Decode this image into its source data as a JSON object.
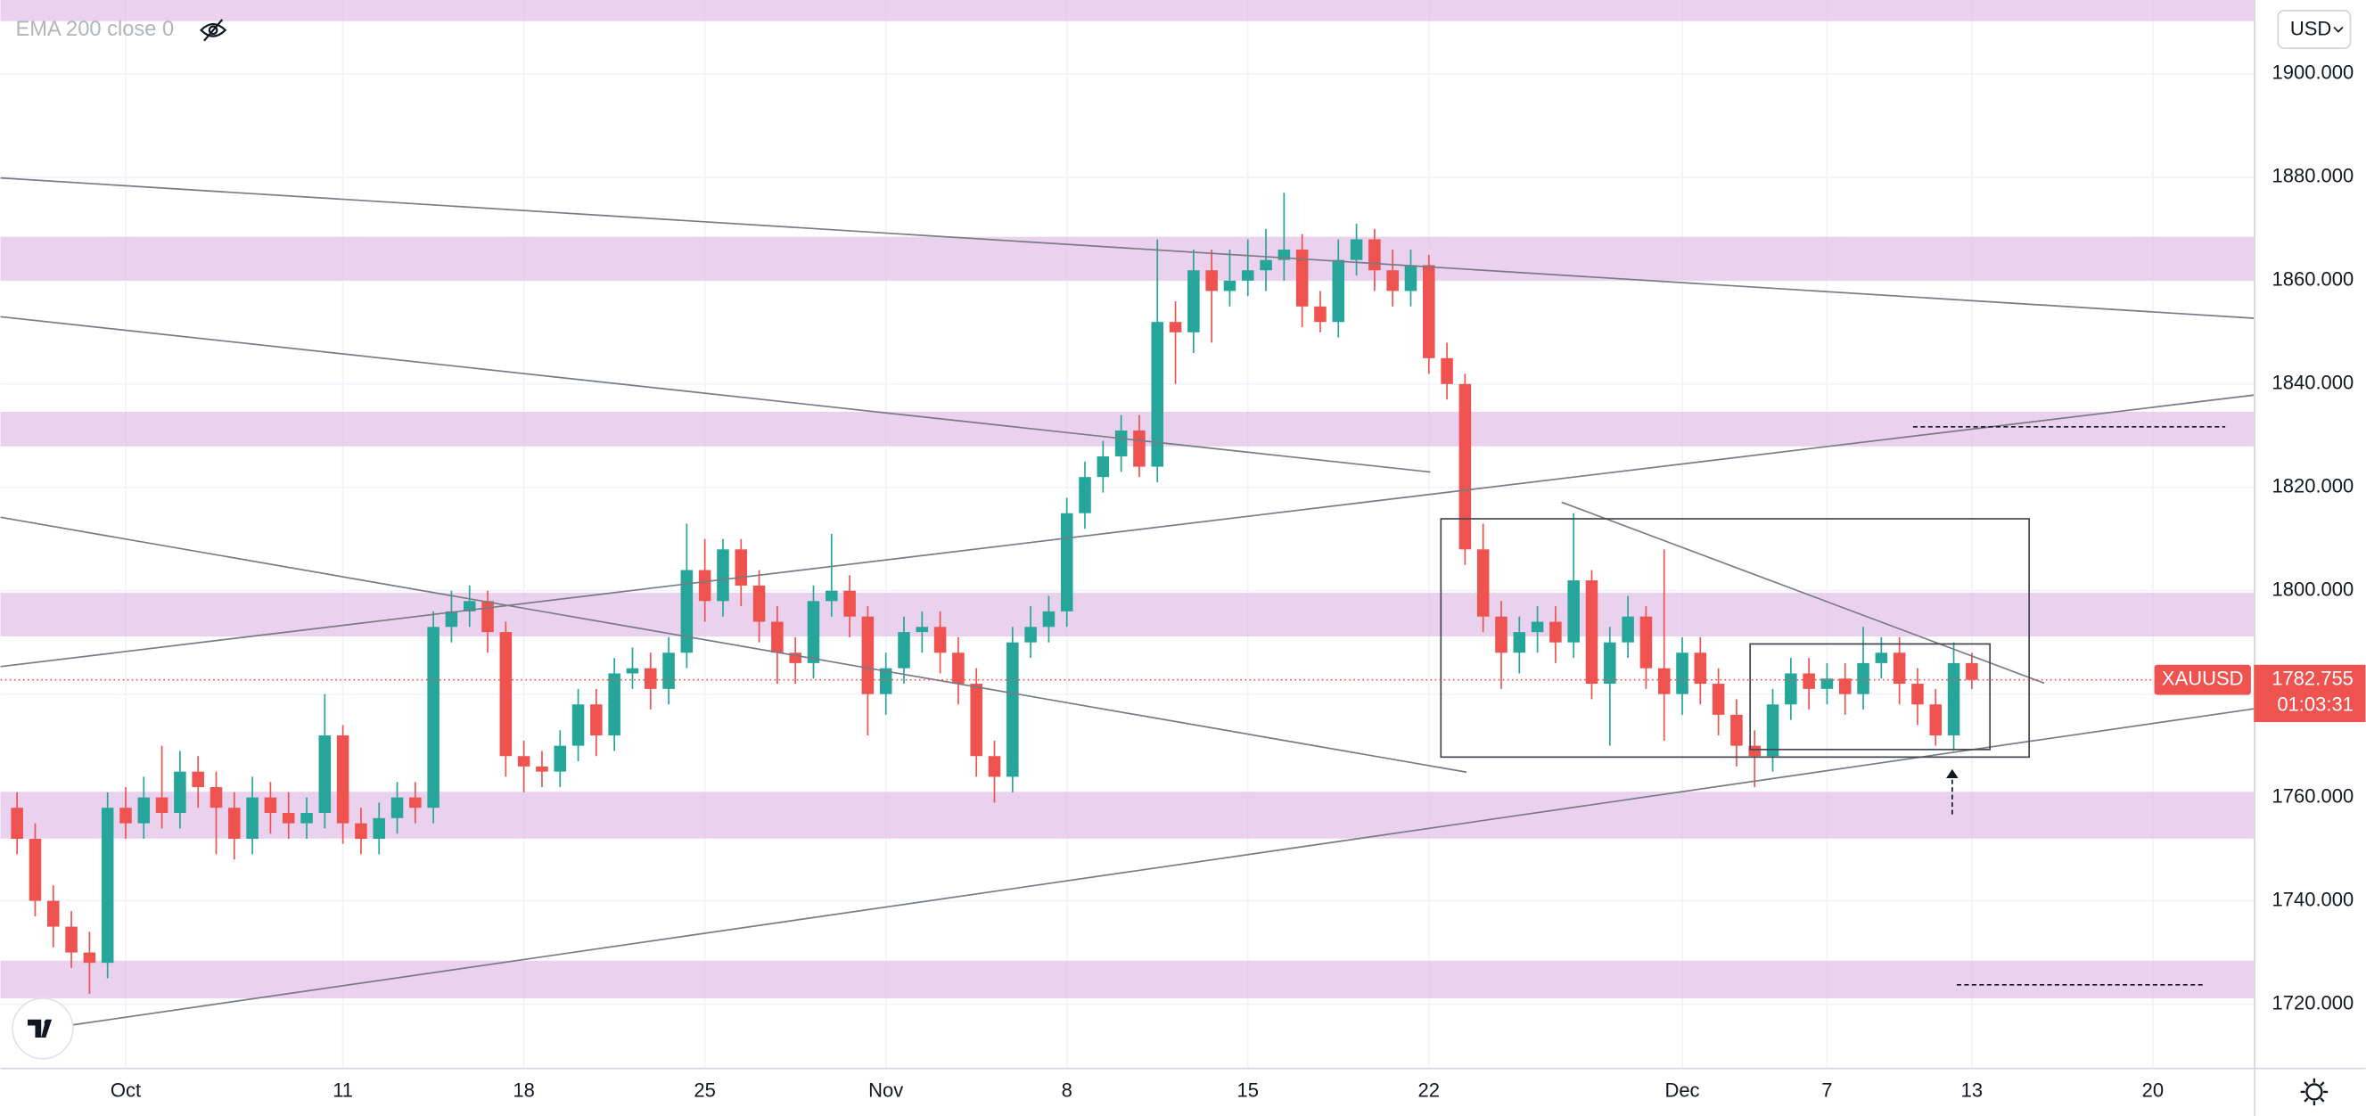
{
  "chart_data": {
    "type": "candlestick",
    "symbol": "XAUUSD",
    "currency": "USD",
    "indicator": "EMA 200 close 0",
    "countdown": "01:03:31",
    "up_color": "#26a69a",
    "down_color": "#ef5350",
    "grid": true,
    "ylim": [
      1707.7,
      1914.3
    ],
    "yticks": [
      {
        "value": 1720,
        "label": "1720.000"
      },
      {
        "value": 1740,
        "label": "1740.000"
      },
      {
        "value": 1760,
        "label": "1760.000"
      },
      {
        "value": 1780,
        "label": "1780.000"
      },
      {
        "value": 1800,
        "label": "1800.000"
      },
      {
        "value": 1820,
        "label": "1820.000"
      },
      {
        "value": 1840,
        "label": "1840.000"
      },
      {
        "value": 1860,
        "label": "1860.000"
      },
      {
        "value": 1880,
        "label": "1880.000"
      },
      {
        "value": 1900,
        "label": "1900.000"
      }
    ],
    "categories": [
      null,
      null,
      null,
      null,
      null,
      null,
      "Oct",
      null,
      null,
      null,
      null,
      null,
      null,
      null,
      null,
      null,
      null,
      null,
      "11",
      null,
      null,
      null,
      null,
      null,
      null,
      null,
      null,
      null,
      "18",
      null,
      null,
      null,
      null,
      null,
      null,
      null,
      null,
      null,
      "25",
      null,
      null,
      null,
      null,
      null,
      null,
      null,
      null,
      null,
      "Nov",
      null,
      null,
      null,
      null,
      null,
      null,
      null,
      null,
      null,
      "8",
      null,
      null,
      null,
      null,
      null,
      null,
      null,
      null,
      null,
      "15",
      null,
      null,
      null,
      null,
      null,
      null,
      null,
      null,
      null,
      "22",
      null,
      null,
      null,
      null,
      null,
      null,
      null,
      null,
      null,
      null,
      null,
      null,
      null,
      "Dec",
      null,
      null,
      null,
      null,
      null,
      null,
      null,
      "7",
      null,
      null,
      null,
      null,
      null,
      null,
      null,
      "13",
      null,
      null,
      null,
      null,
      null,
      null,
      null,
      null,
      null,
      "20"
    ],
    "open": [
      1758,
      1752,
      1740,
      1735,
      1730,
      1728,
      1758,
      1755,
      1760,
      1757,
      1765,
      1762,
      1758,
      1752,
      1760,
      1757,
      1755,
      1757,
      1772,
      1755,
      1752,
      1756,
      1760,
      1758,
      1793,
      1796,
      1798,
      1792,
      1768,
      1766,
      1765,
      1770,
      1778,
      1772,
      1784,
      1785,
      1781,
      1788,
      1804,
      1798,
      1808,
      1801,
      1794,
      1788,
      1786,
      1798,
      1800,
      1795,
      1780,
      1785,
      1792,
      1793,
      1788,
      1782,
      1768,
      1764,
      1790,
      1793,
      1796,
      1815,
      1822,
      1826,
      1831,
      1824,
      1852,
      1850,
      1862,
      1858,
      1860,
      1862,
      1864,
      1866,
      1855,
      1852,
      1864,
      1868,
      1862,
      1858,
      1863,
      1845,
      1840,
      1808,
      1795,
      1788,
      1792,
      1794,
      1790,
      1802,
      1782,
      1790,
      1795,
      1785,
      1780,
      1788,
      1782,
      1776,
      1770,
      1768,
      1778,
      1784,
      1781,
      1783,
      1780,
      1786,
      1788,
      1782,
      1778,
      1772,
      1786,
      null,
      null,
      null,
      null,
      null,
      null,
      null,
      null,
      null,
      null
    ],
    "high": [
      1761,
      1755,
      1743,
      1738,
      1734,
      1761,
      1762,
      1764,
      1770,
      1769,
      1768,
      1765,
      1761,
      1764,
      1763,
      1761,
      1760,
      1780,
      1774,
      1758,
      1759,
      1763,
      1763,
      1796,
      1800,
      1801,
      1800,
      1794,
      1771,
      1769,
      1773,
      1781,
      1781,
      1787,
      1789,
      1788,
      1791,
      1813,
      1810,
      1810,
      1810,
      1804,
      1797,
      1791,
      1801,
      1811,
      1803,
      1797,
      1788,
      1795,
      1796,
      1796,
      1791,
      1785,
      1771,
      1793,
      1797,
      1799,
      1818,
      1825,
      1829,
      1834,
      1834,
      1868,
      1856,
      1866,
      1866,
      1866,
      1868,
      1870,
      1877,
      1869,
      1858,
      1868,
      1871,
      1870,
      1866,
      1866,
      1865,
      1848,
      1842,
      1813,
      1798,
      1795,
      1797,
      1797,
      1815,
      1804,
      1793,
      1799,
      1797,
      1808,
      1791,
      1791,
      1785,
      1779,
      1773,
      1781,
      1787,
      1787,
      1786,
      1786,
      1793,
      1791,
      1791,
      1785,
      1781,
      1790,
      1788,
      null,
      null,
      null,
      null,
      null,
      null,
      null,
      null,
      null,
      null
    ],
    "low": [
      1749,
      1737,
      1731,
      1727,
      1722,
      1725,
      1752,
      1752,
      1754,
      1754,
      1758,
      1749,
      1748,
      1749,
      1753,
      1752,
      1752,
      1754,
      1751,
      1749,
      1749,
      1753,
      1755,
      1755,
      1790,
      1793,
      1788,
      1764,
      1761,
      1762,
      1762,
      1767,
      1768,
      1769,
      1781,
      1777,
      1778,
      1785,
      1794,
      1795,
      1797,
      1790,
      1782,
      1782,
      1783,
      1795,
      1791,
      1772,
      1776,
      1782,
      1788,
      1784,
      1778,
      1764,
      1759,
      1761,
      1787,
      1790,
      1793,
      1812,
      1819,
      1823,
      1822,
      1821,
      1840,
      1846,
      1848,
      1855,
      1857,
      1858,
      1860,
      1851,
      1850,
      1849,
      1861,
      1858,
      1855,
      1855,
      1842,
      1837,
      1805,
      1792,
      1781,
      1784,
      1788,
      1786,
      1787,
      1779,
      1770,
      1787,
      1781,
      1771,
      1776,
      1778,
      1772,
      1766,
      1762,
      1765,
      1775,
      1777,
      1778,
      1776,
      1777,
      1783,
      1778,
      1774,
      1770,
      1769,
      1781,
      null,
      null,
      null,
      null,
      null,
      null,
      null,
      null,
      null,
      null
    ],
    "close": [
      1752,
      1740,
      1735,
      1730,
      1728,
      1758,
      1755,
      1760,
      1757,
      1765,
      1762,
      1758,
      1752,
      1760,
      1757,
      1755,
      1757,
      1772,
      1755,
      1752,
      1756,
      1760,
      1758,
      1793,
      1796,
      1798,
      1792,
      1768,
      1766,
      1765,
      1770,
      1778,
      1772,
      1784,
      1785,
      1781,
      1788,
      1804,
      1798,
      1808,
      1801,
      1794,
      1788,
      1786,
      1798,
      1800,
      1795,
      1780,
      1785,
      1792,
      1793,
      1788,
      1782,
      1768,
      1764,
      1790,
      1793,
      1796,
      1815,
      1822,
      1826,
      1831,
      1824,
      1852,
      1850,
      1862,
      1858,
      1860,
      1862,
      1864,
      1866,
      1855,
      1852,
      1864,
      1868,
      1862,
      1858,
      1863,
      1845,
      1840,
      1808,
      1795,
      1788,
      1792,
      1794,
      1790,
      1802,
      1782,
      1790,
      1795,
      1785,
      1780,
      1788,
      1782,
      1776,
      1770,
      1768,
      1778,
      1784,
      1781,
      1783,
      1780,
      1786,
      1788,
      1782,
      1778,
      1772,
      1786,
      1782.755,
      null,
      null,
      null,
      null,
      null,
      null,
      null,
      null,
      null,
      null
    ]
  }
}
